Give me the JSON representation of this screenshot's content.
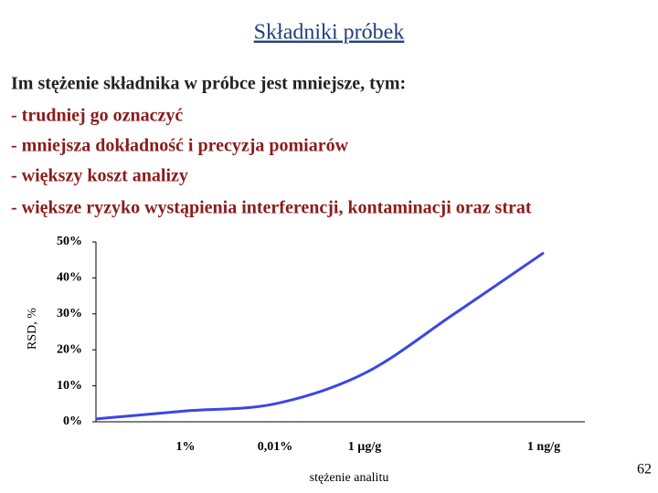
{
  "title": "Składniki próbek",
  "text_lines": [
    "Im stężenie składnika w próbce jest mniejsze, tym:",
    "- trudniej go oznaczyć",
    "- mniejsza dokładność i precyzja pomiarów",
    "- większy koszt analizy",
    "- większe ryzyko wystąpienia interferencji, kontaminacji oraz strat"
  ],
  "page_number": "62",
  "chart_data": {
    "type": "line",
    "ylabel": "RSD, %",
    "xlabel": "stężenie analitu",
    "categories": [
      null,
      "1%",
      "0,01%",
      "1 µg/g",
      null,
      "1 ng/g"
    ],
    "values": [
      0.8,
      3,
      5,
      13.5,
      30,
      47
    ],
    "color": "#3a46e6",
    "ylim": [
      0,
      50
    ],
    "yticks": [
      {
        "value": 0,
        "label": "0%"
      },
      {
        "value": 10,
        "label": "10%"
      },
      {
        "value": 20,
        "label": "20%"
      },
      {
        "value": 30,
        "label": "30%"
      },
      {
        "value": 40,
        "label": "40%"
      },
      {
        "value": 50,
        "label": "50%"
      }
    ],
    "grid": false
  }
}
